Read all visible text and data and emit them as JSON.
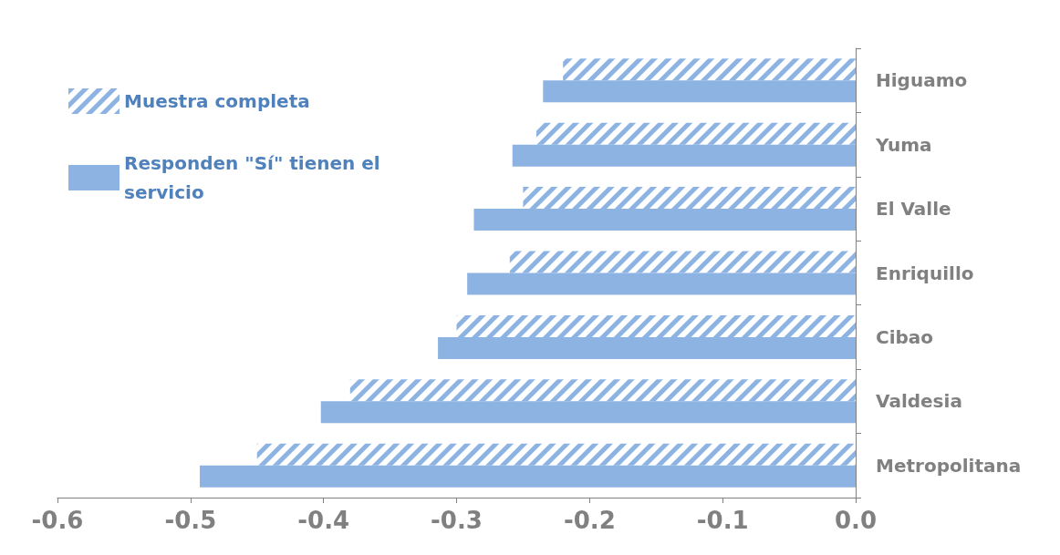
{
  "chart_data": {
    "type": "bar",
    "orientation": "horizontal",
    "categories": [
      "Higuamo",
      "Yuma",
      "El Valle",
      "Enriquillo",
      "Cibao",
      "Valdesia",
      "Metropolitana"
    ],
    "series": [
      {
        "name": "Muestra completa",
        "color": "#8db3e2",
        "values": [
          -0.22,
          -0.24,
          -0.25,
          -0.26,
          -0.3,
          -0.38,
          -0.45
        ]
      },
      {
        "name": "Responden \"Sí\" tienen el servicio",
        "color": "#8db3e2",
        "values": [
          -0.235,
          -0.258,
          -0.287,
          -0.292,
          -0.314,
          -0.402,
          -0.493
        ]
      }
    ],
    "xlim": [
      -0.6,
      0
    ],
    "xticks": [
      -0.6,
      -0.5,
      -0.4,
      -0.3,
      -0.2,
      -0.1,
      {
        "value": 0,
        "label": "0.0"
      }
    ],
    "grid": false,
    "legend": "top left"
  }
}
